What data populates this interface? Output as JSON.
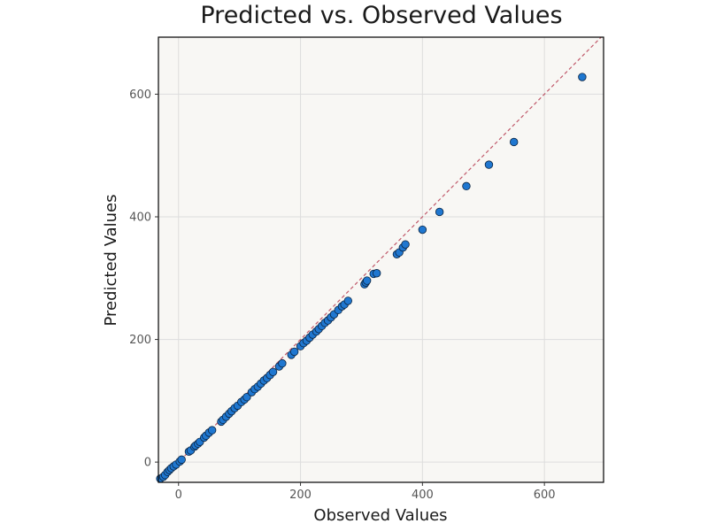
{
  "chart_data": {
    "type": "scatter",
    "title": "Predicted vs. Observed Values",
    "xlabel": "Observed Values",
    "ylabel": "Predicted Values",
    "xlim": [
      -33,
      697
    ],
    "ylim": [
      -33,
      693
    ],
    "xticks": [
      0,
      200,
      400,
      600
    ],
    "yticks": [
      0,
      200,
      400,
      600
    ],
    "grid": true,
    "reference_line": "y = x",
    "colors": {
      "background": "#f8f7f4",
      "grid": "#dddddd",
      "point_fill": "#1f77d0",
      "point_edge": "#0b2440",
      "reference_line": "#c0596a"
    },
    "points": [
      {
        "x": -30,
        "y": -27
      },
      {
        "x": -25,
        "y": -24
      },
      {
        "x": -22,
        "y": -21
      },
      {
        "x": -18,
        "y": -16
      },
      {
        "x": -15,
        "y": -13
      },
      {
        "x": -12,
        "y": -10
      },
      {
        "x": -8,
        "y": -7
      },
      {
        "x": -4,
        "y": -4
      },
      {
        "x": 2,
        "y": 1
      },
      {
        "x": 5,
        "y": 4
      },
      {
        "x": 17,
        "y": 17
      },
      {
        "x": 20,
        "y": 19
      },
      {
        "x": 26,
        "y": 25
      },
      {
        "x": 28,
        "y": 27
      },
      {
        "x": 32,
        "y": 30
      },
      {
        "x": 35,
        "y": 33
      },
      {
        "x": 42,
        "y": 40
      },
      {
        "x": 45,
        "y": 43
      },
      {
        "x": 50,
        "y": 48
      },
      {
        "x": 55,
        "y": 52
      },
      {
        "x": 70,
        "y": 66
      },
      {
        "x": 73,
        "y": 69
      },
      {
        "x": 78,
        "y": 74
      },
      {
        "x": 83,
        "y": 79
      },
      {
        "x": 87,
        "y": 83
      },
      {
        "x": 92,
        "y": 88
      },
      {
        "x": 97,
        "y": 92
      },
      {
        "x": 103,
        "y": 98
      },
      {
        "x": 108,
        "y": 102
      },
      {
        "x": 112,
        "y": 106
      },
      {
        "x": 120,
        "y": 114
      },
      {
        "x": 125,
        "y": 119
      },
      {
        "x": 130,
        "y": 123
      },
      {
        "x": 135,
        "y": 128
      },
      {
        "x": 140,
        "y": 133
      },
      {
        "x": 145,
        "y": 137
      },
      {
        "x": 150,
        "y": 142
      },
      {
        "x": 155,
        "y": 147
      },
      {
        "x": 165,
        "y": 156
      },
      {
        "x": 170,
        "y": 161
      },
      {
        "x": 185,
        "y": 175
      },
      {
        "x": 190,
        "y": 180
      },
      {
        "x": 200,
        "y": 189
      },
      {
        "x": 205,
        "y": 194
      },
      {
        "x": 210,
        "y": 198
      },
      {
        "x": 215,
        "y": 203
      },
      {
        "x": 220,
        "y": 208
      },
      {
        "x": 226,
        "y": 213
      },
      {
        "x": 230,
        "y": 217
      },
      {
        "x": 235,
        "y": 222
      },
      {
        "x": 240,
        "y": 227
      },
      {
        "x": 245,
        "y": 231
      },
      {
        "x": 250,
        "y": 236
      },
      {
        "x": 255,
        "y": 241
      },
      {
        "x": 262,
        "y": 248
      },
      {
        "x": 268,
        "y": 254
      },
      {
        "x": 272,
        "y": 257
      },
      {
        "x": 278,
        "y": 263
      },
      {
        "x": 305,
        "y": 290
      },
      {
        "x": 307,
        "y": 293
      },
      {
        "x": 309,
        "y": 296
      },
      {
        "x": 320,
        "y": 307
      },
      {
        "x": 325,
        "y": 308
      },
      {
        "x": 358,
        "y": 339
      },
      {
        "x": 362,
        "y": 342
      },
      {
        "x": 368,
        "y": 350
      },
      {
        "x": 372,
        "y": 355
      },
      {
        "x": 400,
        "y": 379
      },
      {
        "x": 428,
        "y": 408
      },
      {
        "x": 472,
        "y": 450
      },
      {
        "x": 509,
        "y": 485
      },
      {
        "x": 550,
        "y": 522
      },
      {
        "x": 662,
        "y": 628
      }
    ]
  }
}
